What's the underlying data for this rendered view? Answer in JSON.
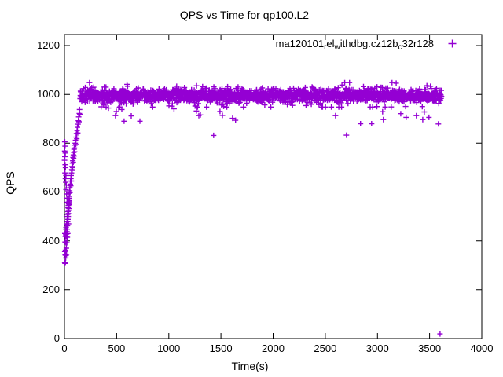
{
  "chart_data": {
    "type": "scatter",
    "title": "QPS vs Time for qp100.L2",
    "xlabel": "Time(s)",
    "ylabel": "QPS",
    "xlim": [
      0,
      4000
    ],
    "ylim": [
      0,
      1245
    ],
    "xticks": [
      0,
      500,
      1000,
      1500,
      2000,
      2500,
      3000,
      3500,
      4000
    ],
    "yticks": [
      0,
      200,
      400,
      600,
      800,
      1000,
      1200
    ],
    "grid": false,
    "legend_position": "top-right-inside",
    "background": "#ffffff",
    "axis_color": "#000000",
    "marker_color": "#9400d3",
    "legend": {
      "label_raw": "ma120101_rel_withdbg.cz12b_c32r128",
      "label_segments": [
        {
          "type": "text",
          "value": "ma120101"
        },
        {
          "type": "sub",
          "value": "r"
        },
        {
          "type": "text",
          "value": "el"
        },
        {
          "type": "sub",
          "value": "w"
        },
        {
          "type": "text",
          "value": "ithdbg.cz12b"
        },
        {
          "type": "sub",
          "value": "c"
        },
        {
          "type": "text",
          "value": "32r128"
        }
      ],
      "marker_glyph": "+"
    },
    "series": [
      {
        "name": "ma120101_rel_withdbg.cz12b_c32r128",
        "marker": "plus",
        "color": "#9400d3",
        "summary": "QPS ramps from ~300 to ~1000 during first ~150 s, then holds a dense band of ~950-1050 QPS until ~3615 s, with occasional dips to ~830-930 and one final sample near 20 QPS at ~3600 s",
        "ramp_points": [
          [
            1,
            730
          ],
          [
            2,
            312
          ],
          [
            2,
            768
          ],
          [
            3,
            356
          ],
          [
            3,
            806
          ],
          [
            4,
            430
          ],
          [
            4,
            745
          ],
          [
            5,
            308
          ],
          [
            5,
            678
          ],
          [
            6,
            395
          ],
          [
            6,
            788
          ],
          [
            7,
            342
          ],
          [
            7,
            712
          ],
          [
            8,
            418
          ],
          [
            8,
            760
          ],
          [
            9,
            310
          ],
          [
            9,
            655
          ],
          [
            10,
            362
          ],
          [
            10,
            700
          ],
          [
            11,
            425
          ],
          [
            12,
            330
          ],
          [
            12,
            640
          ],
          [
            13,
            448
          ],
          [
            14,
            392
          ],
          [
            14,
            668
          ],
          [
            15,
            340
          ],
          [
            15,
            610
          ],
          [
            16,
            455
          ],
          [
            17,
            418
          ],
          [
            18,
            370
          ],
          [
            18,
            628
          ],
          [
            19,
            468
          ],
          [
            20,
            345
          ],
          [
            20,
            592
          ],
          [
            21,
            428
          ],
          [
            22,
            470
          ],
          [
            23,
            392
          ],
          [
            24,
            438
          ],
          [
            24,
            575
          ],
          [
            25,
            480
          ],
          [
            26,
            448
          ],
          [
            27,
            500
          ],
          [
            28,
            415
          ],
          [
            28,
            558
          ],
          [
            29,
            462
          ],
          [
            30,
            508
          ],
          [
            31,
            478
          ],
          [
            32,
            430
          ],
          [
            33,
            520
          ],
          [
            34,
            488
          ],
          [
            35,
            535
          ],
          [
            36,
            500
          ],
          [
            37,
            545
          ],
          [
            38,
            512
          ],
          [
            39,
            470
          ],
          [
            40,
            552
          ],
          [
            41,
            525
          ],
          [
            42,
            560
          ],
          [
            43,
            532
          ],
          [
            44,
            575
          ],
          [
            45,
            548
          ],
          [
            46,
            582
          ],
          [
            47,
            555
          ],
          [
            48,
            595
          ],
          [
            49,
            565
          ],
          [
            50,
            605
          ],
          [
            52,
            618
          ],
          [
            54,
            598
          ],
          [
            56,
            632
          ],
          [
            58,
            645
          ],
          [
            60,
            625
          ],
          [
            62,
            655
          ],
          [
            64,
            668
          ],
          [
            66,
            645
          ],
          [
            68,
            678
          ],
          [
            70,
            692
          ],
          [
            72,
            705
          ],
          [
            74,
            688
          ],
          [
            76,
            718
          ],
          [
            78,
            700
          ],
          [
            80,
            728
          ],
          [
            82,
            742
          ],
          [
            84,
            722
          ],
          [
            86,
            752
          ],
          [
            88,
            738
          ],
          [
            90,
            762
          ],
          [
            92,
            775
          ],
          [
            94,
            748
          ],
          [
            96,
            780
          ],
          [
            98,
            765
          ],
          [
            100,
            792
          ],
          [
            103,
            800
          ],
          [
            106,
            812
          ],
          [
            109,
            795
          ],
          [
            112,
            825
          ],
          [
            115,
            840
          ],
          [
            118,
            818
          ],
          [
            121,
            852
          ],
          [
            124,
            865
          ],
          [
            127,
            842
          ],
          [
            130,
            878
          ],
          [
            133,
            892
          ],
          [
            136,
            908
          ],
          [
            139,
            888
          ],
          [
            142,
            922
          ],
          [
            145,
            938
          ],
          [
            148,
            918
          ]
        ],
        "steady_band": {
          "t_start": 150,
          "t_end": 3614,
          "step_s": 2,
          "mean_qps": 995,
          "jitter_qps": 26,
          "min_qps": 948,
          "max_qps": 1048,
          "up_spike_prob": 0.03,
          "down_spike_prob": 0.025,
          "seed": 20240611
        },
        "outlier_points": [
          [
            399,
            948
          ],
          [
            422,
            944
          ],
          [
            489,
            913
          ],
          [
            497,
            930
          ],
          [
            520,
            945
          ],
          [
            550,
            938
          ],
          [
            572,
            890
          ],
          [
            640,
            912
          ],
          [
            723,
            890
          ],
          [
            1002,
            953
          ],
          [
            1050,
            941
          ],
          [
            1265,
            932
          ],
          [
            1288,
            913
          ],
          [
            1303,
            916
          ],
          [
            1430,
            832
          ],
          [
            1491,
            930
          ],
          [
            1514,
            914
          ],
          [
            1611,
            902
          ],
          [
            1640,
            894
          ],
          [
            2598,
            913
          ],
          [
            2703,
            833
          ],
          [
            2838,
            880
          ],
          [
            2944,
            880
          ],
          [
            3049,
            929
          ],
          [
            3057,
            897
          ],
          [
            3223,
            921
          ],
          [
            3275,
            906
          ],
          [
            3373,
            913
          ],
          [
            3434,
            897
          ],
          [
            3449,
            928
          ],
          [
            3494,
            906
          ],
          [
            3584,
            879
          ],
          [
            3600,
            19
          ]
        ]
      }
    ]
  }
}
